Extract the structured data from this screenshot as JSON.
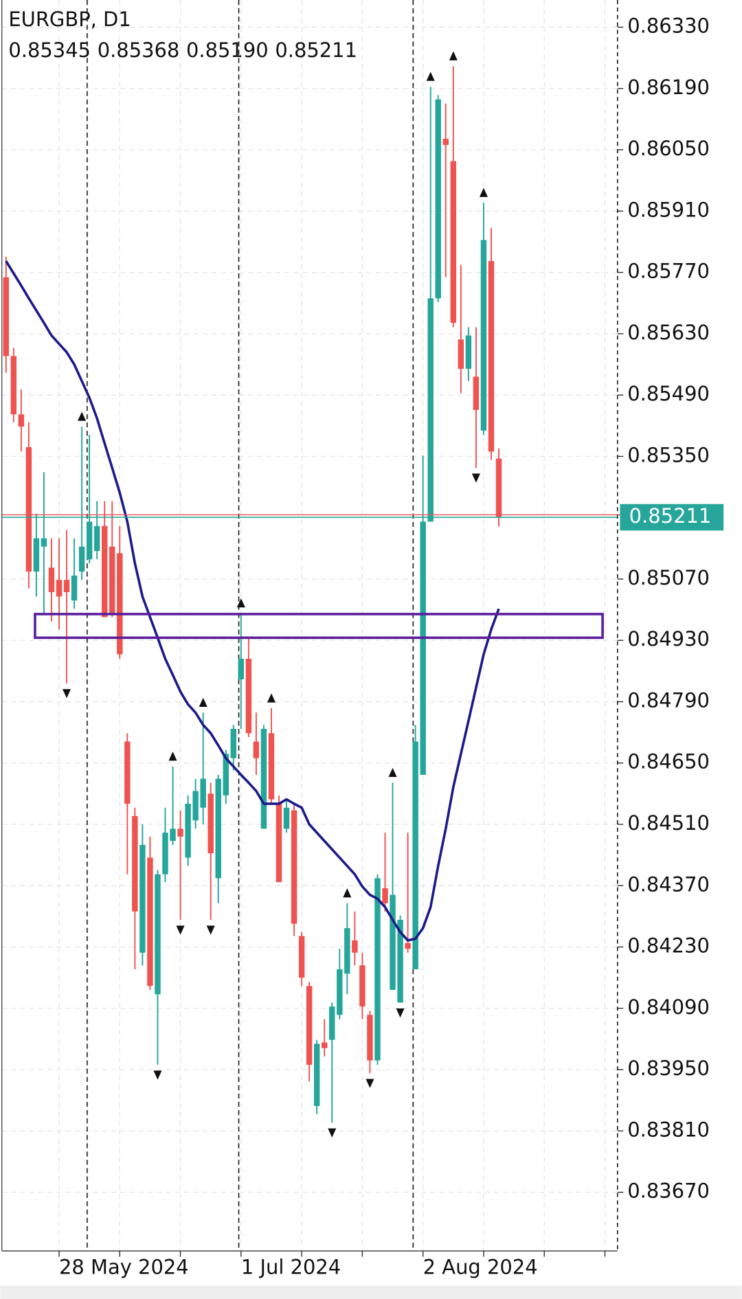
{
  "chart_data": {
    "type": "candlestick",
    "title": "EURGBP, D1",
    "ohlc_labels": [
      "0.85345",
      "0.85368",
      "0.85190",
      "0.85211"
    ],
    "categories": [
      null,
      null,
      null,
      null,
      null,
      null,
      null,
      "28 May 2024",
      null,
      null,
      null,
      null,
      null,
      null,
      null,
      null,
      null,
      null,
      null,
      null,
      null,
      null,
      null,
      null,
      null,
      null,
      null,
      null,
      null,
      null,
      null,
      "1 Jul 2024",
      null,
      null,
      null,
      null,
      null,
      null,
      null,
      null,
      null,
      null,
      null,
      null,
      null,
      null,
      null,
      null,
      null,
      null,
      null,
      null,
      null,
      null,
      null,
      "2 Aug 2024",
      null,
      null,
      null,
      null,
      null,
      null,
      null,
      null,
      null,
      null
    ],
    "open": [
      0.85759,
      0.85579,
      0.85446,
      0.85371,
      0.85087,
      0.85144,
      0.85096,
      0.85068,
      0.85068,
      0.85021,
      0.85087,
      0.85115,
      0.85134,
      0.85191,
      0.85144,
      0.85129,
      0.84699,
      0.84529,
      0.84217,
      0.84434,
      0.84122,
      0.84396,
      0.84472,
      0.845,
      0.84434,
      0.84519,
      0.84548,
      0.8458,
      0.84387,
      0.84576,
      0.84661,
      0.84841,
      0.84888,
      0.84699,
      0.845,
      0.84718,
      0.84557,
      0.845,
      0.84542,
      0.84255,
      0.84141,
      0.83867,
      0.84012,
      0.84018,
      0.84075,
      0.84169,
      0.84245,
      0.84188,
      0.84075,
      0.83971,
      0.84364,
      0.84132,
      0.84103,
      0.84239,
      0.84179,
      0.84623,
      0.85201,
      0.85711,
      0.86075,
      0.86024,
      0.85617,
      0.8555,
      0.85532,
      0.85409,
      0.85796,
      0.85345
    ],
    "high": [
      0.85806,
      0.85598,
      0.85503,
      0.85428,
      0.85219,
      0.85314,
      0.85163,
      0.85163,
      0.85182,
      0.85163,
      0.85418,
      0.85399,
      0.85248,
      0.85248,
      0.85248,
      0.85191,
      0.84718,
      0.84548,
      0.8451,
      0.84482,
      0.84406,
      0.84548,
      0.84642,
      0.84542,
      0.84576,
      0.84614,
      0.84765,
      0.84605,
      0.84623,
      0.8468,
      0.84737,
      0.84992,
      0.84936,
      0.84765,
      0.84737,
      0.84775,
      0.84576,
      0.84567,
      0.84557,
      0.84264,
      0.8415,
      0.84018,
      0.84065,
      0.84103,
      0.84226,
      0.8433,
      0.84311,
      0.84217,
      0.84084,
      0.84396,
      0.84491,
      0.84605,
      0.84302,
      0.84491,
      0.84737,
      0.85352,
      0.86194,
      0.86175,
      0.86156,
      0.86241,
      0.85787,
      0.85645,
      0.85645,
      0.85929,
      0.85872,
      0.85368
    ],
    "low": [
      0.85541,
      0.85428,
      0.85361,
      0.85049,
      0.8503,
      0.84992,
      0.84973,
      0.84955,
      0.84832,
      0.85002,
      0.85068,
      0.85106,
      0.85115,
      0.84983,
      0.84983,
      0.84888,
      0.84396,
      0.84179,
      0.84188,
      0.84132,
      0.83961,
      0.84378,
      0.84463,
      0.84292,
      0.84415,
      0.845,
      0.8451,
      0.84292,
      0.8433,
      0.84557,
      0.84633,
      0.84728,
      0.84709,
      0.84623,
      0.845,
      0.84557,
      0.84378,
      0.84491,
      0.84255,
      0.84141,
      0.83923,
      0.83848,
      0.8398,
      0.83829,
      0.84065,
      0.84122,
      0.84188,
      0.84065,
      0.83942,
      0.83961,
      0.84311,
      0.84132,
      0.84103,
      0.84217,
      0.84179,
      0.84623,
      0.85201,
      0.85702,
      0.85759,
      0.85645,
      0.85494,
      0.85522,
      0.85324,
      0.85399,
      0.85342,
      0.8519
    ],
    "close": [
      0.85579,
      0.85446,
      0.85418,
      0.85087,
      0.85163,
      0.85163,
      0.8504,
      0.8503,
      0.8504,
      0.85078,
      0.85144,
      0.85201,
      0.85191,
      0.84983,
      0.84992,
      0.84898,
      0.84557,
      0.84311,
      0.84463,
      0.84141,
      0.84396,
      0.84491,
      0.845,
      0.84482,
      0.84557,
      0.84586,
      0.84614,
      0.84444,
      0.84614,
      0.84671,
      0.84728,
      0.84888,
      0.84718,
      0.84661,
      0.84728,
      0.84567,
      0.84378,
      0.84548,
      0.84283,
      0.8416,
      0.83961,
      0.84009,
      0.83999,
      0.84094,
      0.84179,
      0.84273,
      0.84217,
      0.84094,
      0.83971,
      0.84387,
      0.8433,
      0.84349,
      0.84292,
      0.84226,
      0.84699,
      0.85201,
      0.85711,
      0.86165,
      0.86061,
      0.85655,
      0.8555,
      0.85626,
      0.85456,
      0.85844,
      0.85361,
      0.85211
    ],
    "ma": [
      0.85796,
      0.85768,
      0.8574,
      0.85711,
      0.85683,
      0.85655,
      0.85626,
      0.85607,
      0.85588,
      0.8556,
      0.85522,
      0.85484,
      0.85437,
      0.8538,
      0.85324,
      0.85267,
      0.85201,
      0.85106,
      0.8503,
      0.84983,
      0.84936,
      0.84888,
      0.84851,
      0.84813,
      0.84784,
      0.84765,
      0.84737,
      0.84718,
      0.8469,
      0.84661,
      0.84642,
      0.84623,
      0.84605,
      0.84586,
      0.84557,
      0.84557,
      0.84557,
      0.84567,
      0.84557,
      0.84548,
      0.8451,
      0.84491,
      0.84472,
      0.84453,
      0.84434,
      0.84415,
      0.84396,
      0.84368,
      0.84349,
      0.8434,
      0.84321,
      0.84292,
      0.84264,
      0.84245,
      0.84249,
      0.84273,
      0.84321,
      0.84415,
      0.845,
      0.84595,
      0.84671,
      0.84746,
      0.84822,
      0.84898,
      0.84955,
      0.85002
    ],
    "fractals": {
      "up": [
        10,
        22,
        26,
        31,
        35,
        45,
        51,
        56,
        59,
        63
      ],
      "down": [
        8,
        20,
        23,
        27,
        43,
        48,
        52,
        62
      ]
    },
    "separators": [
      11,
      31,
      54
    ],
    "zone": {
      "ylim": [
        0.84936,
        0.8499
      ]
    },
    "up_color": "#26a69a",
    "down_color": "#ef5350",
    "ma_color": "#1c1a8a",
    "zone_color": "#5a1e9c",
    "ylim": [
      0.83536,
      0.86392
    ],
    "yticks": [
      {
        "value": 0.8633,
        "label": "0.86330"
      },
      {
        "value": 0.8619,
        "label": "0.86190"
      },
      {
        "value": 0.8605,
        "label": "0.86050"
      },
      {
        "value": 0.8591,
        "label": "0.85910"
      },
      {
        "value": 0.8577,
        "label": "0.85770"
      },
      {
        "value": 0.8563,
        "label": "0.85630"
      },
      {
        "value": 0.8549,
        "label": "0.85490"
      },
      {
        "value": 0.8535,
        "label": "0.85350"
      },
      {
        "value": 0.8507,
        "label": "0.85070"
      },
      {
        "value": 0.8493,
        "label": "0.84930"
      },
      {
        "value": 0.8479,
        "label": "0.84790"
      },
      {
        "value": 0.8465,
        "label": "0.84650"
      },
      {
        "value": 0.8451,
        "label": "0.84510"
      },
      {
        "value": 0.8437,
        "label": "0.84370"
      },
      {
        "value": 0.8423,
        "label": "0.84230"
      },
      {
        "value": 0.8409,
        "label": "0.84090"
      },
      {
        "value": 0.8395,
        "label": "0.83950"
      },
      {
        "value": 0.8381,
        "label": "0.83810"
      },
      {
        "value": 0.8367,
        "label": "0.83670"
      }
    ],
    "grid": true
  }
}
